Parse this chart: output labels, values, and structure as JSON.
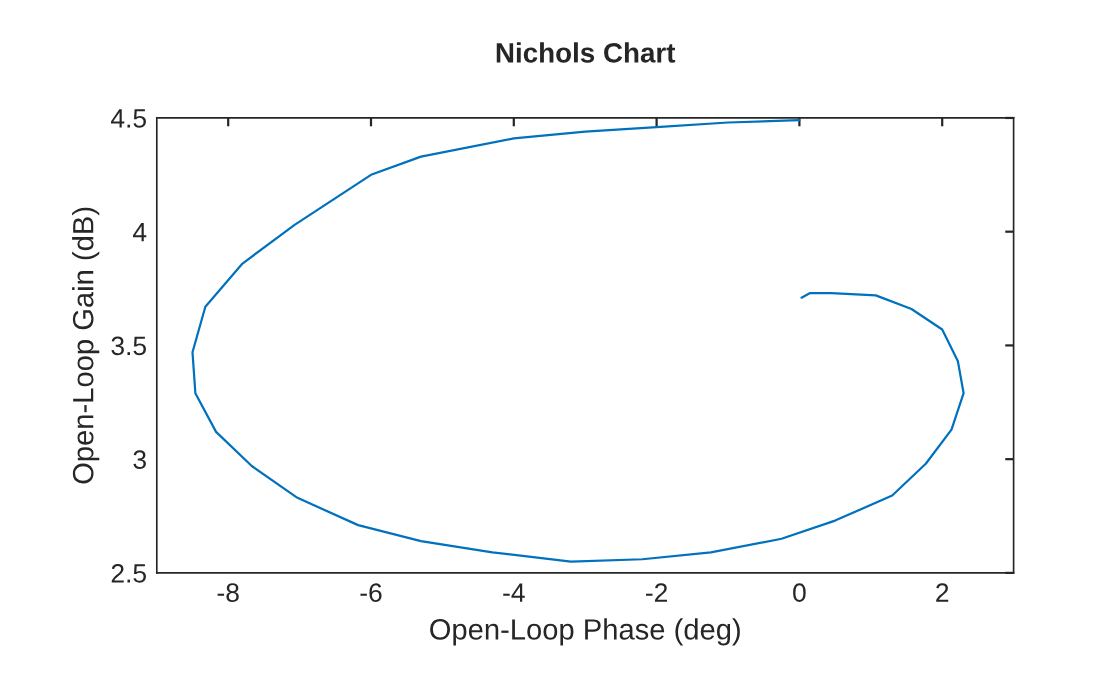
{
  "chart_data": {
    "type": "line",
    "title": "Nichols Chart",
    "xlabel": "Open-Loop Phase (deg)",
    "ylabel": "Open-Loop Gain (dB)",
    "xlim": [
      -9,
      3
    ],
    "xticks": [
      -8,
      -6,
      -4,
      -2,
      0,
      2
    ],
    "ylim": [
      2.5,
      4.5
    ],
    "yticks": [
      2.5,
      3,
      3.5,
      4,
      4.5
    ],
    "grid": false,
    "legend": false,
    "marker": "none",
    "line_style": "solid",
    "series": [
      {
        "color": "#0072bd",
        "x": [
          0,
          -1,
          -2,
          -3,
          -4,
          -5.3,
          -6,
          -7.07,
          -7.8,
          -8.32,
          -8.5,
          -8.46,
          -8.17,
          -7.67,
          -7.03,
          -6.18,
          -5.3,
          -4.3,
          -3.2,
          -2.2,
          -1.24,
          -0.25,
          0.5,
          1.3,
          1.77,
          2.13,
          2.3,
          2.22,
          2.0,
          1.57,
          1.07,
          0.45,
          0.15,
          0.03
        ],
        "values": [
          4.49,
          4.48,
          4.46,
          4.44,
          4.41,
          4.33,
          4.25,
          4.03,
          3.86,
          3.67,
          3.47,
          3.29,
          3.12,
          2.97,
          2.83,
          2.71,
          2.64,
          2.59,
          2.55,
          2.56,
          2.59,
          2.65,
          2.73,
          2.84,
          2.98,
          3.13,
          3.29,
          3.43,
          3.57,
          3.66,
          3.72,
          3.73,
          3.73,
          3.71
        ]
      }
    ]
  }
}
